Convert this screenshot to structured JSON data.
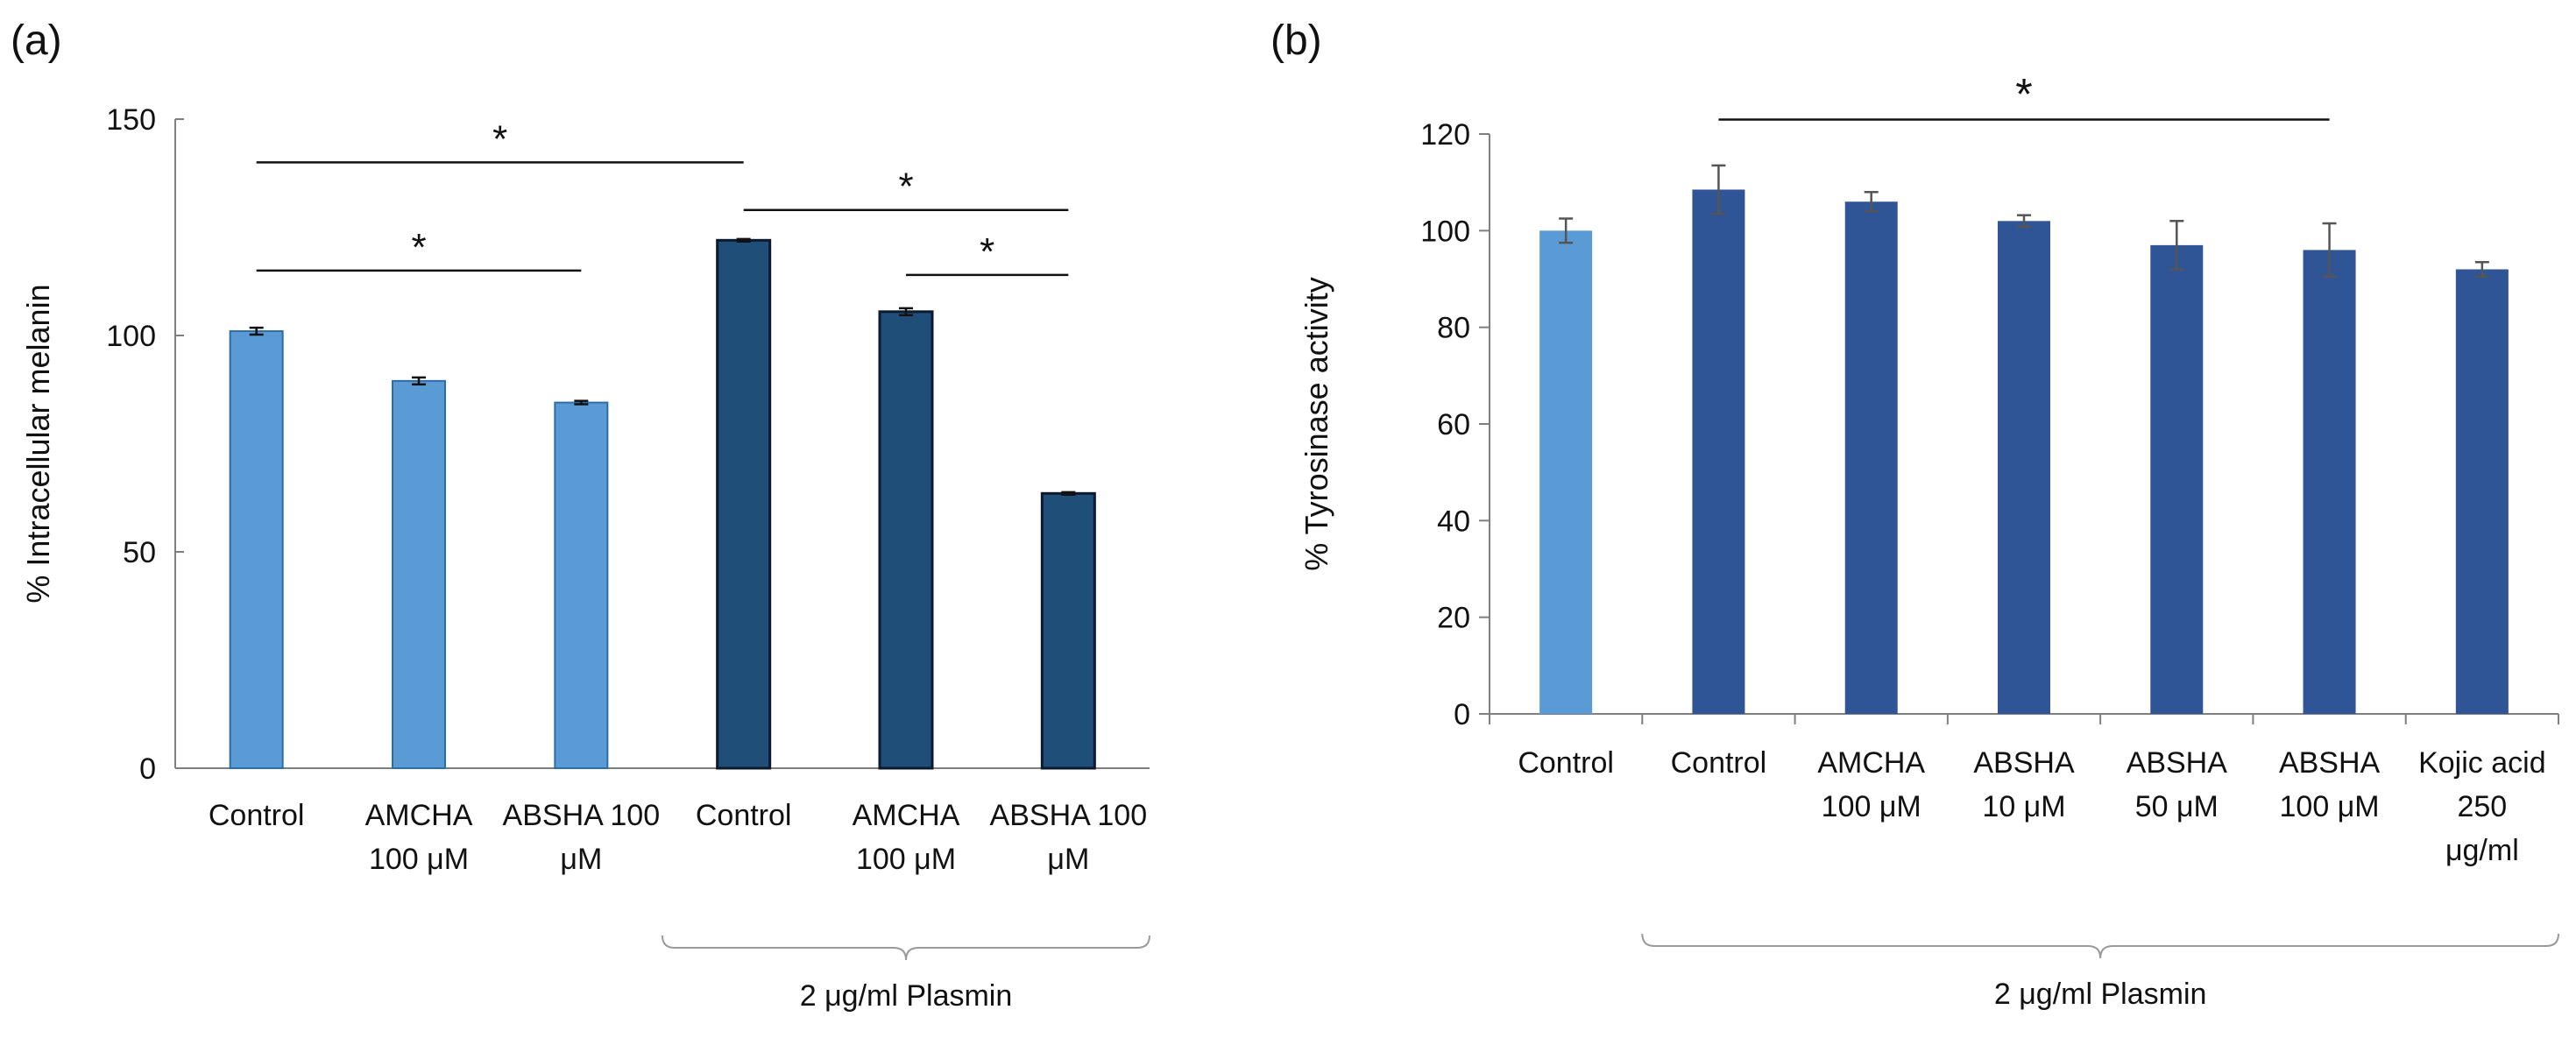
{
  "panels": [
    {
      "label": "(a)"
    },
    {
      "label": "(b)"
    }
  ],
  "chart_data": [
    {
      "type": "bar",
      "panel": "(a)",
      "ylabel": "% Intracellular melanin",
      "ylim": [
        0,
        150
      ],
      "yticks": [
        0,
        50,
        100,
        150
      ],
      "categories": [
        {
          "lines": [
            "Control"
          ]
        },
        {
          "lines": [
            "AMCHA",
            "100 μM"
          ]
        },
        {
          "lines": [
            "ABSHA 100",
            "μM"
          ]
        },
        {
          "lines": [
            "Control"
          ]
        },
        {
          "lines": [
            "AMCHA",
            "100 μM"
          ]
        },
        {
          "lines": [
            "ABSHA 100",
            "μM"
          ]
        }
      ],
      "values": [
        101,
        89.5,
        84.5,
        122,
        105.5,
        63.5
      ],
      "errors": [
        0.8,
        0.8,
        0.4,
        0.3,
        0.8,
        0.3
      ],
      "colors": [
        "#5b9bd5",
        "#5b9bd5",
        "#5b9bd5",
        "#1f4e79",
        "#1f4e79",
        "#1f4e79"
      ],
      "group_label": "2 μg/ml Plasmin",
      "group_range": [
        3,
        5
      ],
      "significance": [
        {
          "from": 0,
          "to": 3,
          "level": 140,
          "label": "*"
        },
        {
          "from": 0,
          "to": 2,
          "level": 115,
          "label": "*"
        },
        {
          "from": 3,
          "to": 5,
          "level": 129,
          "label": "*"
        },
        {
          "from": 4,
          "to": 5,
          "level": 114,
          "label": "*"
        }
      ]
    },
    {
      "type": "bar",
      "panel": "(b)",
      "ylabel": "% Tyrosinase activity",
      "ylim": [
        0,
        120
      ],
      "yticks": [
        0,
        20,
        40,
        60,
        80,
        100,
        120
      ],
      "categories": [
        {
          "lines": [
            "Control"
          ]
        },
        {
          "lines": [
            "Control"
          ]
        },
        {
          "lines": [
            "AMCHA",
            "100 μM"
          ]
        },
        {
          "lines": [
            "ABSHA",
            "10 μM"
          ]
        },
        {
          "lines": [
            "ABSHA",
            "50 μM"
          ]
        },
        {
          "lines": [
            "ABSHA",
            "100 μM"
          ]
        },
        {
          "lines": [
            "Kojic acid",
            "250",
            "μg/ml"
          ]
        }
      ],
      "values": [
        100,
        108.5,
        106,
        102,
        97,
        96,
        92
      ],
      "errors": [
        2.5,
        5,
        2,
        1.2,
        5,
        5.5,
        1.5
      ],
      "colors": [
        "#5b9bd5",
        "#2f5597",
        "#2f5597",
        "#2f5597",
        "#2f5597",
        "#2f5597",
        "#2f5597"
      ],
      "group_label": "2 μg/ml Plasmin",
      "group_range": [
        1,
        6
      ],
      "significance": [
        {
          "from": 1,
          "to": 5,
          "level": 123,
          "label": "*"
        }
      ]
    }
  ]
}
